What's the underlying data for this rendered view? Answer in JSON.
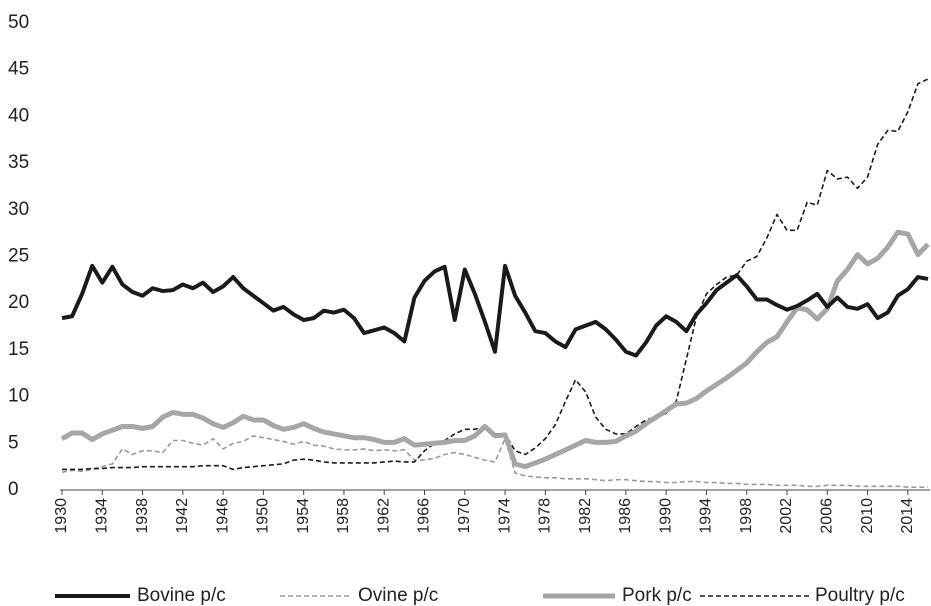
{
  "chart_data": {
    "type": "line",
    "x": [
      1930,
      1931,
      1932,
      1933,
      1934,
      1935,
      1936,
      1937,
      1938,
      1939,
      1940,
      1941,
      1942,
      1943,
      1944,
      1945,
      1946,
      1947,
      1948,
      1949,
      1950,
      1951,
      1952,
      1953,
      1954,
      1955,
      1956,
      1957,
      1958,
      1959,
      1960,
      1961,
      1962,
      1963,
      1964,
      1965,
      1966,
      1967,
      1968,
      1969,
      1970,
      1971,
      1972,
      1973,
      1974,
      1975,
      1976,
      1977,
      1978,
      1979,
      1980,
      1981,
      1982,
      1983,
      1984,
      1985,
      1986,
      1987,
      1988,
      1989,
      1990,
      1991,
      1992,
      1993,
      1994,
      1995,
      1996,
      1997,
      1998,
      1999,
      2000,
      2001,
      2002,
      2003,
      2004,
      2005,
      2006,
      2007,
      2008,
      2009,
      2010,
      2011,
      2012,
      2013,
      2014,
      2015,
      2016
    ],
    "series": [
      {
        "name": "Bovine p/c",
        "color": "#1a1a1a",
        "width": 4,
        "dash": false,
        "values": [
          18.4,
          18.6,
          21,
          24,
          22.2,
          23.9,
          22,
          21.2,
          20.8,
          21.6,
          21.3,
          21.4,
          22,
          21.6,
          22.2,
          21.2,
          21.8,
          22.8,
          21.6,
          20.8,
          20,
          19.2,
          19.6,
          18.8,
          18.2,
          18.4,
          19.2,
          19,
          19.3,
          18.4,
          16.8,
          17.1,
          17.4,
          16.8,
          15.9,
          20.6,
          22.4,
          23.4,
          23.9,
          18.2,
          23.6,
          21,
          18,
          14.8,
          24,
          20.8,
          19,
          17,
          16.8,
          15.9,
          15.3,
          17.2,
          17.6,
          18,
          17.2,
          16.1,
          14.8,
          14.4,
          15.8,
          17.6,
          18.6,
          18,
          17,
          18.8,
          20,
          21.4,
          22.2,
          23,
          21.8,
          20.4,
          20.4,
          19.8,
          19.3,
          19.7,
          20.3,
          21,
          19.6,
          20.6,
          19.6,
          19.4,
          19.9,
          18.4,
          19,
          20.8,
          21.5,
          22.8,
          22.6
        ]
      },
      {
        "name": "Ovine p/c",
        "color": "#9a9a9a",
        "width": 1.6,
        "dash": true,
        "values": [
          1.9,
          2.1,
          2,
          2.2,
          2.5,
          2.8,
          4.4,
          3.8,
          4.2,
          4.2,
          4,
          5.3,
          5.3,
          5,
          4.8,
          5.5,
          4.4,
          5,
          5.2,
          5.8,
          5.6,
          5.4,
          5.2,
          4.9,
          5.2,
          4.8,
          4.7,
          4.4,
          4.3,
          4.3,
          4.4,
          4.2,
          4.3,
          4.2,
          4.3,
          3.2,
          3.2,
          3.4,
          3.8,
          4,
          3.8,
          3.5,
          3.2,
          3,
          5.5,
          1.8,
          1.5,
          1.4,
          1.3,
          1.3,
          1.2,
          1.2,
          1.2,
          1.1,
          1,
          1.1,
          1.1,
          1,
          0.9,
          0.9,
          0.8,
          0.8,
          0.9,
          0.9,
          0.8,
          0.8,
          0.7,
          0.7,
          0.6,
          0.6,
          0.6,
          0.5,
          0.5,
          0.5,
          0.4,
          0.4,
          0.5,
          0.5,
          0.5,
          0.4,
          0.4,
          0.4,
          0.4,
          0.4,
          0.3,
          0.3,
          0.3
        ]
      },
      {
        "name": "Pork p/c",
        "color": "#a6a6a6",
        "width": 5,
        "dash": false,
        "values": [
          5.5,
          6.1,
          6.1,
          5.4,
          6,
          6.4,
          6.8,
          6.8,
          6.6,
          6.8,
          7.8,
          8.3,
          8.1,
          8.1,
          7.7,
          7.1,
          6.7,
          7.2,
          7.9,
          7.5,
          7.5,
          6.9,
          6.5,
          6.7,
          7.1,
          6.6,
          6.2,
          6,
          5.8,
          5.6,
          5.6,
          5.4,
          5.1,
          5.1,
          5.5,
          4.8,
          4.9,
          5,
          5.1,
          5.3,
          5.3,
          5.8,
          6.8,
          5.8,
          5.9,
          2.8,
          2.5,
          2.9,
          3.3,
          3.8,
          4.3,
          4.8,
          5.3,
          5.1,
          5.1,
          5.2,
          5.8,
          6.3,
          7.1,
          7.8,
          8.5,
          9.2,
          9.3,
          9.8,
          10.6,
          11.3,
          12,
          12.8,
          13.6,
          14.8,
          15.8,
          16.4,
          18,
          19.5,
          19.3,
          18.3,
          19.4,
          22.4,
          23.6,
          25.2,
          24.2,
          24.8,
          26,
          27.6,
          27.4,
          25.2,
          26.3
        ]
      },
      {
        "name": "Poultry p/c",
        "color": "#1a1a1a",
        "width": 1.6,
        "dash": true,
        "values": [
          2.2,
          2.2,
          2.2,
          2.3,
          2.3,
          2.4,
          2.4,
          2.4,
          2.5,
          2.5,
          2.5,
          2.5,
          2.5,
          2.5,
          2.6,
          2.6,
          2.6,
          2.2,
          2.4,
          2.5,
          2.6,
          2.7,
          2.8,
          3.2,
          3.3,
          3.2,
          3,
          2.9,
          2.9,
          2.9,
          2.9,
          2.9,
          3,
          3.1,
          3,
          3,
          4.2,
          5,
          5.3,
          6,
          6.5,
          6.5,
          6.8,
          6,
          6,
          4.2,
          3.8,
          4.5,
          5.5,
          7,
          9.5,
          11.8,
          10.5,
          7.8,
          6.5,
          6,
          6,
          6.8,
          7.5,
          7.8,
          8.2,
          9.5,
          14,
          18.5,
          21,
          22,
          22.8,
          23,
          24.5,
          25,
          27,
          29.5,
          27.8,
          27.8,
          30.8,
          30.5,
          34.2,
          33.3,
          33.5,
          32.3,
          33.5,
          37,
          38.5,
          38.4,
          40.5,
          43.5,
          44
        ]
      }
    ],
    "xlim": [
      1930,
      2016
    ],
    "xticks": [
      1930,
      1934,
      1938,
      1942,
      1946,
      1950,
      1954,
      1958,
      1962,
      1966,
      1970,
      1974,
      1978,
      1982,
      1986,
      1990,
      1994,
      1998,
      2002,
      2006,
      2010,
      2014
    ],
    "ylim": [
      0,
      50
    ],
    "yticks": [
      0,
      5,
      10,
      15,
      20,
      25,
      30,
      35,
      40,
      45,
      50
    ],
    "grid": false,
    "legend": "bottom"
  }
}
